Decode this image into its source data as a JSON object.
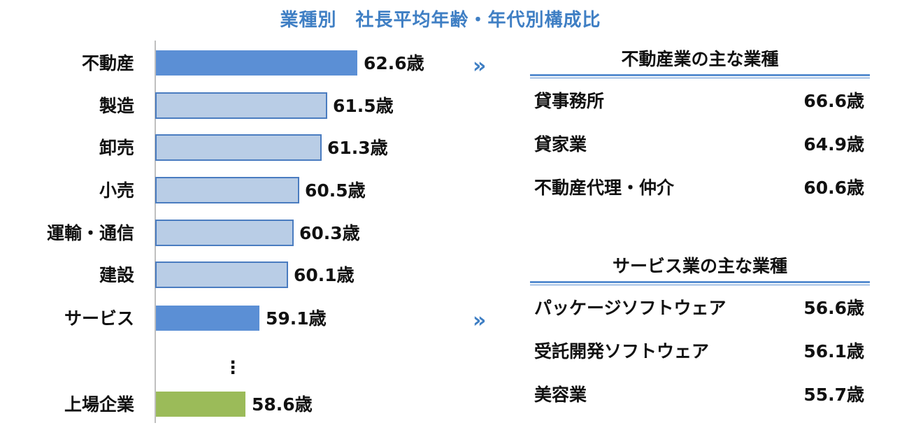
{
  "chart_data": {
    "type": "bar",
    "orientation": "horizontal",
    "title": "業種別　社長平均年齢・年代別構成比",
    "categories": [
      "不動産",
      "製造",
      "卸売",
      "小売",
      "運輸・通信",
      "建設",
      "サービス",
      "上場企業"
    ],
    "values": [
      62.6,
      61.5,
      61.3,
      60.5,
      60.3,
      60.1,
      59.1,
      58.6
    ],
    "value_labels": [
      "62.6歳",
      "61.5歳",
      "61.3歳",
      "60.5歳",
      "60.3歳",
      "60.1歳",
      "59.1歳",
      "58.6歳"
    ],
    "highlight": [
      "dark",
      "light",
      "light",
      "light",
      "light",
      "light",
      "dark",
      "green"
    ],
    "ellipsis": "⋮",
    "colors": {
      "dark": "#5b8fd5",
      "light": "#b9cde6",
      "light_stroke": "#4a7cc0",
      "green": "#9bbb59",
      "axis": "#bfbfbf"
    }
  },
  "arrow_glyph": "»",
  "panels": [
    {
      "title": "不動産業の主な業種",
      "rows": [
        {
          "name": "貸事務所",
          "value": "66.6歳"
        },
        {
          "name": "貸家業",
          "value": "64.9歳"
        },
        {
          "name": "不動産代理・仲介",
          "value": "60.6歳"
        }
      ]
    },
    {
      "title": "サービス業の主な業種",
      "rows": [
        {
          "name": "パッケージソフトウェア",
          "value": "56.6歳"
        },
        {
          "name": "受託開発ソフトウェア",
          "value": "56.1歳"
        },
        {
          "name": "美容業",
          "value": "55.7歳"
        }
      ]
    }
  ]
}
